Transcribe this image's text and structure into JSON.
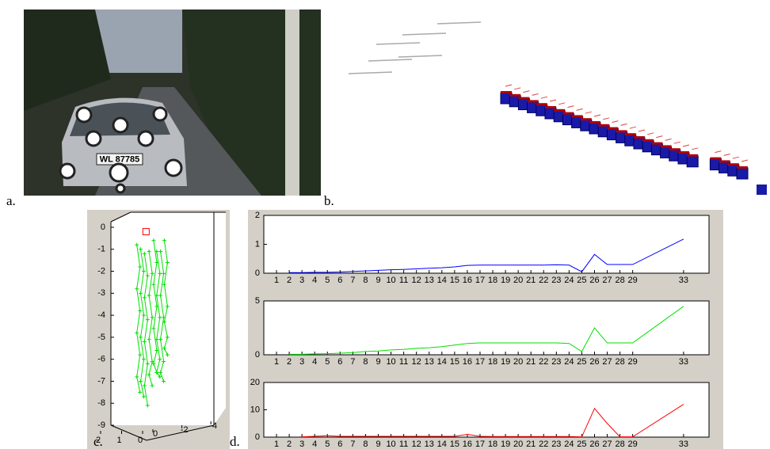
{
  "panel_labels": [
    "a.",
    "b.",
    "c.",
    "d."
  ],
  "photo": {
    "plate": "WL 87785"
  },
  "chart_data": [
    {
      "type": "scatter3d",
      "zlim": [
        -9,
        0
      ],
      "zticks": [
        0,
        -1,
        -2,
        -3,
        -4,
        -5,
        -6,
        -7,
        -8,
        -9
      ],
      "xlim": [
        2.5,
        -4.5
      ],
      "xticks": [
        2,
        1,
        0
      ],
      "yticks": [
        0,
        -2,
        -4
      ],
      "series": [
        {
          "color": "#00e000",
          "traces": [
            {
              "x": 0.7,
              "z": [
                -0.8,
                -1.8,
                -2.8,
                -3.8,
                -4.8,
                -5.8,
                -6.8,
                -7.5
              ]
            },
            {
              "x": 0.45,
              "z": [
                -1.0,
                -2.0,
                -3.0,
                -4.0,
                -5.0,
                -6.0,
                -7.0,
                -7.7
              ]
            },
            {
              "x": 0.2,
              "z": [
                -1.2,
                -2.2,
                -3.2,
                -4.2,
                -5.2,
                -6.2,
                -7.2,
                -8.1
              ]
            },
            {
              "x": -0.1,
              "z": [
                -1.1,
                -2.1,
                -3.1,
                -4.1,
                -5.1,
                -6.1,
                -6.7,
                -7.2
              ]
            },
            {
              "x": -0.4,
              "z": [
                -0.6,
                -1.6,
                -2.6,
                -3.6,
                -4.6,
                -5.6,
                -6.2,
                -6.6
              ]
            },
            {
              "x": -0.6,
              "z": [
                -1.1,
                -2.1,
                -3.1,
                -4.1,
                -5.1,
                -6.0,
                -6.6,
                -6.8
              ]
            },
            {
              "x": -0.85,
              "z": [
                -1.1,
                -2.1,
                -3.1,
                -4.1,
                -5.1,
                -6.1,
                -6.6,
                -7.0
              ]
            },
            {
              "x": -1.1,
              "z": [
                -0.6,
                -1.6,
                -2.6,
                -3.6,
                -4.3,
                -5.0,
                -5.5,
                -5.8
              ]
            }
          ]
        },
        {
          "color": "#ff0000",
          "traces": [
            {
              "x": 0.2,
              "z": [
                -0.2
              ]
            }
          ]
        }
      ]
    },
    {
      "type": "line",
      "xlim": [
        0,
        35
      ],
      "ylim": [
        0,
        2
      ],
      "yticks": [
        0,
        1,
        2
      ],
      "xticks": [
        1,
        2,
        3,
        4,
        5,
        6,
        7,
        8,
        9,
        10,
        11,
        12,
        13,
        14,
        15,
        16,
        17,
        18,
        19,
        20,
        21,
        22,
        23,
        24,
        25,
        26,
        27,
        28,
        29,
        33
      ],
      "x": [
        2,
        3,
        4,
        5,
        6,
        7,
        8,
        9,
        10,
        11,
        12,
        13,
        14,
        15,
        16,
        17,
        18,
        19,
        20,
        21,
        22,
        23,
        24,
        25,
        26,
        27,
        28,
        29,
        33
      ],
      "series": [
        {
          "color": "#0000ff",
          "values": [
            0.02,
            0.02,
            0.03,
            0.03,
            0.04,
            0.06,
            0.08,
            0.1,
            0.12,
            0.13,
            0.15,
            0.17,
            0.19,
            0.22,
            0.27,
            0.28,
            0.28,
            0.28,
            0.28,
            0.28,
            0.28,
            0.29,
            0.28,
            0.05,
            0.65,
            0.3,
            0.3,
            0.3,
            1.18
          ]
        }
      ]
    },
    {
      "type": "line",
      "xlim": [
        0,
        35
      ],
      "ylim": [
        0,
        5
      ],
      "yticks": [
        0,
        5
      ],
      "xticks": [
        1,
        2,
        3,
        4,
        5,
        6,
        7,
        8,
        9,
        10,
        11,
        12,
        13,
        14,
        15,
        16,
        17,
        18,
        19,
        20,
        21,
        22,
        23,
        24,
        25,
        26,
        27,
        28,
        29,
        33
      ],
      "x": [
        2,
        3,
        4,
        5,
        6,
        7,
        8,
        9,
        10,
        11,
        12,
        13,
        14,
        15,
        16,
        17,
        18,
        19,
        20,
        21,
        22,
        23,
        24,
        25,
        26,
        27,
        28,
        29,
        33
      ],
      "series": [
        {
          "color": "#00e000",
          "values": [
            0.05,
            0.05,
            0.08,
            0.1,
            0.15,
            0.2,
            0.3,
            0.35,
            0.45,
            0.5,
            0.6,
            0.65,
            0.75,
            0.9,
            1.05,
            1.1,
            1.1,
            1.1,
            1.1,
            1.1,
            1.1,
            1.1,
            1.05,
            0.3,
            2.5,
            1.1,
            1.1,
            1.1,
            4.5
          ]
        }
      ]
    },
    {
      "type": "line",
      "xlim": [
        0,
        35
      ],
      "ylim": [
        0,
        20
      ],
      "yticks": [
        0,
        10,
        20
      ],
      "xticks": [
        1,
        2,
        3,
        4,
        5,
        6,
        7,
        8,
        9,
        10,
        11,
        12,
        13,
        14,
        15,
        16,
        17,
        18,
        19,
        20,
        21,
        22,
        23,
        24,
        25,
        26,
        27,
        28,
        29,
        33
      ],
      "x": [
        2,
        3,
        4,
        5,
        6,
        7,
        8,
        9,
        10,
        11,
        12,
        13,
        14,
        15,
        16,
        17,
        18,
        19,
        20,
        21,
        22,
        23,
        24,
        25,
        26,
        27,
        28,
        29,
        33
      ],
      "series": [
        {
          "color": "#ff0000",
          "values": [
            null,
            0.1,
            0.3,
            0.5,
            0.3,
            0.3,
            0.3,
            0.3,
            0.3,
            0.3,
            0.3,
            0.3,
            0.3,
            0.3,
            1.0,
            0.3,
            0.2,
            0.2,
            0.2,
            0.2,
            0.2,
            0.2,
            0.2,
            0.1,
            10.5,
            5,
            0.1,
            0.1,
            12
          ]
        }
      ]
    }
  ]
}
